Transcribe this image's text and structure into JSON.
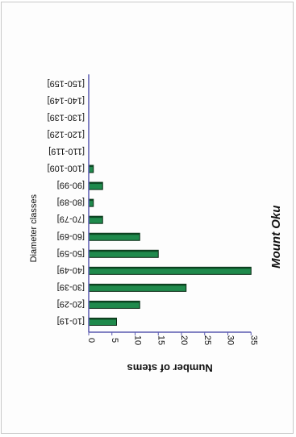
{
  "chart_data": {
    "type": "bar",
    "orientation": "horizontal",
    "title": "Mount Oku",
    "xlabel": "Number of stems",
    "ylabel": "Diameter classes",
    "categories": [
      "[10-19]",
      "[20-29]",
      "[30-39]",
      "[40-49]",
      "[50-59]",
      "[60-69]",
      "[70-79]",
      "[80-89]",
      "[90-99]",
      "[100-109]",
      "[110-119]",
      "[120-129]",
      "[130-139]",
      "[140-149]",
      "[150-159]"
    ],
    "values": [
      6,
      11,
      21,
      35,
      15,
      11,
      3,
      1,
      3,
      1,
      0,
      0,
      0,
      0,
      0
    ],
    "ticks": [
      "0",
      "5",
      "10",
      "15",
      "20",
      "25",
      "30",
      "35"
    ],
    "xlim": [
      0,
      35
    ],
    "grid": false,
    "legend": "none",
    "bar_color": "#1f8a4c",
    "bar_edge": "#0a2a14",
    "axis_color": "#5a5ab0"
  }
}
